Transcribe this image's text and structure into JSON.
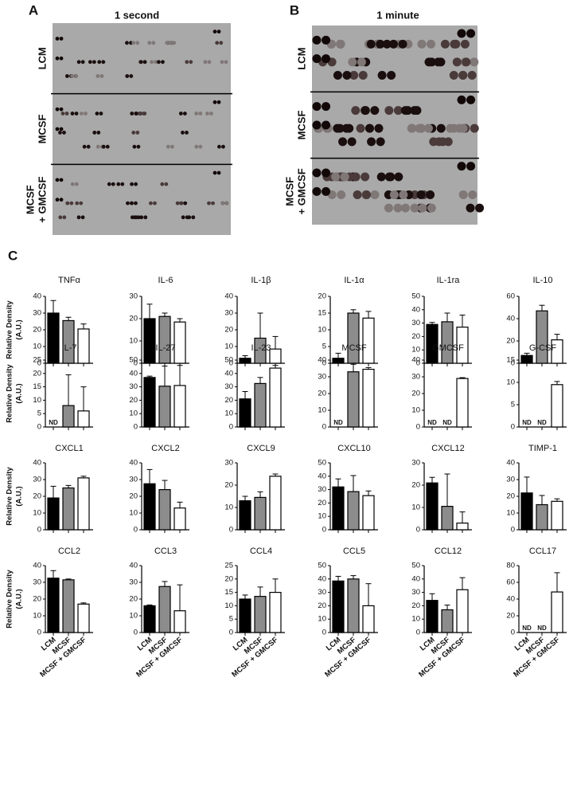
{
  "panels": {
    "a": {
      "label": "A",
      "title": "1 second",
      "rows": [
        [
          "LCM"
        ],
        [
          "MCSF"
        ],
        [
          "MCSF",
          "+ GMCSF"
        ]
      ]
    },
    "b": {
      "label": "B",
      "title": "1 minute",
      "rows": [
        [
          "LCM"
        ],
        [
          "MCSF"
        ],
        [
          "MCSF",
          "+ GMCSF"
        ]
      ]
    },
    "c": {
      "label": "C"
    }
  },
  "chart_data": [
    {
      "type": "bar",
      "title": "TNFα",
      "y_label": [
        "Relative Density",
        "(A.U.)"
      ],
      "values": [
        30,
        25.5,
        20.5
      ],
      "errors": [
        7.5,
        2,
        3
      ],
      "colors": [
        "#000000",
        "#8c8c8c",
        "#ffffff"
      ],
      "ylim": [
        0,
        40
      ],
      "yticks": [
        0,
        10,
        20,
        30,
        40
      ]
    },
    {
      "type": "bar",
      "title": "IL-6",
      "values": [
        20,
        21,
        18.5
      ],
      "errors": [
        6.5,
        1.5,
        1.5
      ],
      "colors": [
        "#000000",
        "#8c8c8c",
        "#ffffff"
      ],
      "ylim": [
        0,
        30
      ],
      "yticks": [
        0,
        10,
        20,
        30
      ]
    },
    {
      "type": "bar",
      "title": "IL-1β",
      "values": [
        3,
        15,
        8.5
      ],
      "errors": [
        1.5,
        15,
        7.5
      ],
      "colors": [
        "#000000",
        "#8c8c8c",
        "#ffffff"
      ],
      "ylim": [
        0,
        40
      ],
      "yticks": [
        0,
        10,
        20,
        30,
        40
      ]
    },
    {
      "type": "bar",
      "title": "IL-1α",
      "values": [
        1.5,
        15,
        13.5
      ],
      "errors": [
        1.5,
        1,
        2
      ],
      "colors": [
        "#000000",
        "#8c8c8c",
        "#ffffff"
      ],
      "ylim": [
        0,
        20
      ],
      "yticks": [
        0,
        5,
        10,
        15,
        20
      ]
    },
    {
      "type": "bar",
      "title": "IL-1ra",
      "values": [
        29,
        31,
        27
      ],
      "errors": [
        1.5,
        6.5,
        9
      ],
      "colors": [
        "#000000",
        "#8c8c8c",
        "#ffffff"
      ],
      "ylim": [
        0,
        50
      ],
      "yticks": [
        0,
        10,
        20,
        30,
        40,
        50
      ]
    },
    {
      "type": "bar",
      "title": "IL-10",
      "values": [
        7,
        47,
        21
      ],
      "errors": [
        2,
        5,
        5
      ],
      "colors": [
        "#000000",
        "#8c8c8c",
        "#ffffff"
      ],
      "ylim": [
        0,
        60
      ],
      "yticks": [
        0,
        20,
        40,
        60
      ]
    },
    {
      "type": "bar",
      "title": "IL-7",
      "y_label": [
        "Relative Density",
        "(A.U.)"
      ],
      "values": [
        null,
        8,
        6
      ],
      "value_labels": [
        "ND",
        null,
        null
      ],
      "errors": [
        null,
        11.5,
        9
      ],
      "colors": [
        "#000000",
        "#8c8c8c",
        "#ffffff"
      ],
      "ylim": [
        0,
        25
      ],
      "yticks": [
        0,
        5,
        10,
        15,
        20,
        25
      ]
    },
    {
      "type": "bar",
      "title": "IL-27",
      "values": [
        37,
        30.5,
        31
      ],
      "errors": [
        1,
        15,
        15
      ],
      "colors": [
        "#000000",
        "#8c8c8c",
        "#ffffff"
      ],
      "ylim": [
        0,
        50
      ],
      "yticks": [
        0,
        10,
        20,
        30,
        40,
        50
      ]
    },
    {
      "type": "bar",
      "title": "IL-23",
      "values": [
        21,
        32.5,
        44
      ],
      "errors": [
        5.5,
        4.5,
        2
      ],
      "colors": [
        "#000000",
        "#8c8c8c",
        "#ffffff"
      ],
      "ylim": [
        0,
        50
      ],
      "yticks": [
        0,
        10,
        20,
        30,
        40,
        50
      ]
    },
    {
      "type": "bar",
      "title": "MCSF",
      "values": [
        null,
        33,
        34.5
      ],
      "value_labels": [
        "ND",
        null,
        null
      ],
      "errors": [
        null,
        4.5,
        1
      ],
      "colors": [
        "#000000",
        "#8c8c8c",
        "#ffffff"
      ],
      "ylim": [
        0,
        40
      ],
      "yticks": [
        0,
        10,
        20,
        30,
        40
      ]
    },
    {
      "type": "bar",
      "title": "GMCSF",
      "values": [
        null,
        null,
        29
      ],
      "value_labels": [
        "ND",
        "ND",
        null
      ],
      "errors": [
        null,
        null,
        0.5
      ],
      "colors": [
        "#000000",
        "#8c8c8c",
        "#ffffff"
      ],
      "ylim": [
        0,
        40
      ],
      "yticks": [
        0,
        10,
        20,
        30,
        40
      ]
    },
    {
      "type": "bar",
      "title": "G-CSF",
      "values": [
        null,
        null,
        9.5
      ],
      "value_labels": [
        "ND",
        "ND",
        null
      ],
      "errors": [
        null,
        null,
        0.7
      ],
      "colors": [
        "#000000",
        "#8c8c8c",
        "#ffffff"
      ],
      "ylim": [
        0,
        15
      ],
      "yticks": [
        0,
        5,
        10,
        15
      ]
    },
    {
      "type": "bar",
      "title": "CXCL1",
      "y_label": [
        "Relative Density",
        "(A.U.)"
      ],
      "values": [
        19,
        25,
        31
      ],
      "errors": [
        7,
        1.5,
        1
      ],
      "colors": [
        "#000000",
        "#8c8c8c",
        "#ffffff"
      ],
      "ylim": [
        0,
        40
      ],
      "yticks": [
        0,
        10,
        20,
        30,
        40
      ]
    },
    {
      "type": "bar",
      "title": "CXCL2",
      "values": [
        27.5,
        24,
        13
      ],
      "errors": [
        8.5,
        5.5,
        3.5
      ],
      "colors": [
        "#000000",
        "#8c8c8c",
        "#ffffff"
      ],
      "ylim": [
        0,
        40
      ],
      "yticks": [
        0,
        10,
        20,
        30,
        40
      ]
    },
    {
      "type": "bar",
      "title": "CXCL9",
      "values": [
        13,
        14.5,
        24
      ],
      "errors": [
        2,
        2.5,
        1
      ],
      "colors": [
        "#000000",
        "#8c8c8c",
        "#ffffff"
      ],
      "ylim": [
        0,
        30
      ],
      "yticks": [
        0,
        10,
        20,
        30
      ]
    },
    {
      "type": "bar",
      "title": "CXCL10",
      "values": [
        32,
        28.5,
        25.5
      ],
      "errors": [
        6,
        12,
        3.5
      ],
      "colors": [
        "#000000",
        "#8c8c8c",
        "#ffffff"
      ],
      "ylim": [
        0,
        50
      ],
      "yticks": [
        0,
        10,
        20,
        30,
        40,
        50
      ]
    },
    {
      "type": "bar",
      "title": "CXCL12",
      "values": [
        21,
        10.5,
        3
      ],
      "errors": [
        2.5,
        14.5,
        5
      ],
      "colors": [
        "#000000",
        "#8c8c8c",
        "#ffffff"
      ],
      "ylim": [
        0,
        30
      ],
      "yticks": [
        0,
        10,
        20,
        30
      ]
    },
    {
      "type": "bar",
      "title": "TIMP-1",
      "values": [
        22,
        15,
        17
      ],
      "errors": [
        9.5,
        5.5,
        1.5
      ],
      "colors": [
        "#000000",
        "#8c8c8c",
        "#ffffff"
      ],
      "ylim": [
        0,
        40
      ],
      "yticks": [
        0,
        10,
        20,
        30,
        40
      ]
    },
    {
      "type": "bar",
      "title": "CCL2",
      "y_label": [
        "Relative Density",
        "(A.U.)"
      ],
      "categories": [
        "LCM",
        "MCSF",
        "MCSF + GMCSF"
      ],
      "values": [
        32.5,
        31.5,
        17
      ],
      "errors": [
        4.5,
        0.5,
        0.7
      ],
      "colors": [
        "#000000",
        "#8c8c8c",
        "#ffffff"
      ],
      "ylim": [
        0,
        40
      ],
      "yticks": [
        0,
        10,
        20,
        30,
        40
      ]
    },
    {
      "type": "bar",
      "title": "CCL3",
      "categories": [
        "LCM",
        "MCSF",
        "MCSF + GMCSF"
      ],
      "values": [
        16,
        27.5,
        13
      ],
      "errors": [
        0.5,
        3,
        15.5
      ],
      "colors": [
        "#000000",
        "#8c8c8c",
        "#ffffff"
      ],
      "ylim": [
        0,
        40
      ],
      "yticks": [
        0,
        10,
        20,
        30,
        40
      ]
    },
    {
      "type": "bar",
      "title": "CCL4",
      "categories": [
        "LCM",
        "MCSF",
        "MCSF + GMCSF"
      ],
      "values": [
        12.5,
        13.5,
        15
      ],
      "errors": [
        1.5,
        3.5,
        5
      ],
      "colors": [
        "#000000",
        "#8c8c8c",
        "#ffffff"
      ],
      "ylim": [
        0,
        25
      ],
      "yticks": [
        0,
        5,
        10,
        15,
        20,
        25
      ]
    },
    {
      "type": "bar",
      "title": "CCL5",
      "categories": [
        "LCM",
        "MCSF",
        "MCSF + GMCSF"
      ],
      "values": [
        38.5,
        40,
        20
      ],
      "errors": [
        3.5,
        2.5,
        16.5
      ],
      "colors": [
        "#000000",
        "#8c8c8c",
        "#ffffff"
      ],
      "ylim": [
        0,
        50
      ],
      "yticks": [
        0,
        10,
        20,
        30,
        40,
        50
      ]
    },
    {
      "type": "bar",
      "title": "CCL12",
      "categories": [
        "LCM",
        "MCSF",
        "MCSF + GMCSF"
      ],
      "values": [
        24,
        17,
        32
      ],
      "errors": [
        5,
        3.5,
        9
      ],
      "colors": [
        "#000000",
        "#8c8c8c",
        "#ffffff"
      ],
      "ylim": [
        0,
        50
      ],
      "yticks": [
        0,
        10,
        20,
        30,
        40,
        50
      ]
    },
    {
      "type": "bar",
      "title": "CCL17",
      "categories": [
        "LCM",
        "MCSF",
        "MCSF + GMCSF"
      ],
      "values": [
        null,
        null,
        48.5
      ],
      "value_labels": [
        "ND",
        "ND",
        null
      ],
      "errors": [
        null,
        null,
        23
      ],
      "colors": [
        "#000000",
        "#8c8c8c",
        "#ffffff"
      ],
      "ylim": [
        0,
        80
      ],
      "yticks": [
        0,
        20,
        40,
        60,
        80
      ]
    }
  ]
}
